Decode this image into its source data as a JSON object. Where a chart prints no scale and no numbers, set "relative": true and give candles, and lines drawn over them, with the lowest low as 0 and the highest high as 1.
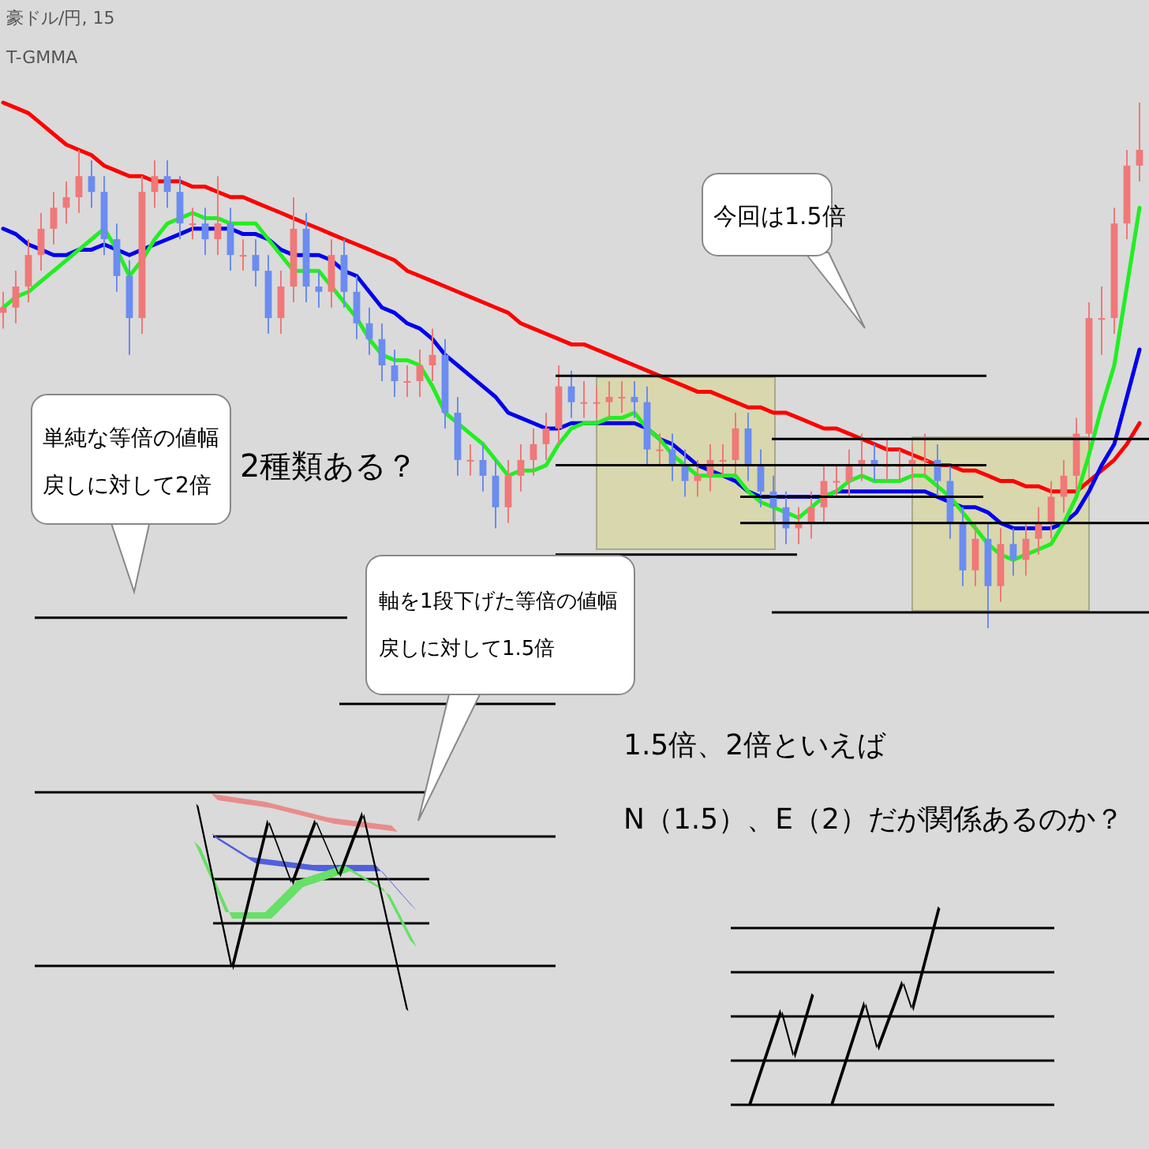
{
  "chart_data": {
    "type": "candlestick",
    "title": "豪ドル/円, 15",
    "subtitle": "T-GMMA",
    "relative": true,
    "categories": [
      null,
      null,
      null,
      null,
      null,
      null,
      null,
      null,
      null,
      null,
      null,
      null,
      null,
      null,
      null,
      null,
      null,
      null,
      null,
      null,
      null,
      null,
      null,
      null,
      null,
      null,
      null,
      null,
      null,
      null,
      null,
      null,
      null,
      null,
      null,
      null,
      null,
      null,
      null,
      null,
      null,
      null,
      null,
      null,
      null,
      null,
      null,
      null,
      null,
      null,
      null,
      null,
      null,
      null,
      null,
      null,
      null,
      null,
      null,
      null,
      null,
      null,
      null,
      null,
      null,
      null,
      null,
      null,
      null,
      null,
      null,
      null,
      null,
      null,
      null,
      null,
      null,
      null,
      null,
      null,
      null,
      null,
      null,
      null,
      null,
      null,
      null,
      null,
      null,
      null,
      null
    ],
    "ohlc": [
      [
        0.6,
        0.64,
        0.57,
        0.61
      ],
      [
        0.61,
        0.68,
        0.58,
        0.65
      ],
      [
        0.65,
        0.74,
        0.62,
        0.71
      ],
      [
        0.71,
        0.79,
        0.68,
        0.76
      ],
      [
        0.76,
        0.83,
        0.73,
        0.8
      ],
      [
        0.8,
        0.85,
        0.77,
        0.82
      ],
      [
        0.82,
        0.91,
        0.79,
        0.86
      ],
      [
        0.86,
        0.89,
        0.8,
        0.83
      ],
      [
        0.83,
        0.86,
        0.71,
        0.74
      ],
      [
        0.74,
        0.77,
        0.64,
        0.67
      ],
      [
        0.67,
        0.7,
        0.52,
        0.59
      ],
      [
        0.59,
        0.86,
        0.56,
        0.83
      ],
      [
        0.83,
        0.89,
        0.8,
        0.86
      ],
      [
        0.86,
        0.89,
        0.8,
        0.83
      ],
      [
        0.83,
        0.86,
        0.74,
        0.77
      ],
      [
        0.77,
        0.8,
        0.74,
        0.77
      ],
      [
        0.77,
        0.8,
        0.71,
        0.74
      ],
      [
        0.74,
        0.86,
        0.71,
        0.77
      ],
      [
        0.77,
        0.8,
        0.68,
        0.71
      ],
      [
        0.71,
        0.74,
        0.68,
        0.71
      ],
      [
        0.71,
        0.74,
        0.65,
        0.68
      ],
      [
        0.68,
        0.71,
        0.56,
        0.59
      ],
      [
        0.59,
        0.68,
        0.56,
        0.65
      ],
      [
        0.65,
        0.82,
        0.62,
        0.76
      ],
      [
        0.76,
        0.79,
        0.62,
        0.65
      ],
      [
        0.65,
        0.68,
        0.61,
        0.64
      ],
      [
        0.64,
        0.74,
        0.61,
        0.71
      ],
      [
        0.71,
        0.74,
        0.61,
        0.64
      ],
      [
        0.64,
        0.67,
        0.55,
        0.58
      ],
      [
        0.58,
        0.61,
        0.52,
        0.55
      ],
      [
        0.55,
        0.58,
        0.47,
        0.5
      ],
      [
        0.5,
        0.53,
        0.44,
        0.47
      ],
      [
        0.47,
        0.5,
        0.44,
        0.47
      ],
      [
        0.47,
        0.53,
        0.44,
        0.5
      ],
      [
        0.5,
        0.57,
        0.47,
        0.52
      ],
      [
        0.52,
        0.55,
        0.38,
        0.41
      ],
      [
        0.41,
        0.44,
        0.29,
        0.32
      ],
      [
        0.32,
        0.35,
        0.29,
        0.32
      ],
      [
        0.32,
        0.35,
        0.26,
        0.29
      ],
      [
        0.29,
        0.32,
        0.19,
        0.23
      ],
      [
        0.23,
        0.32,
        0.2,
        0.29
      ],
      [
        0.29,
        0.35,
        0.26,
        0.32
      ],
      [
        0.32,
        0.38,
        0.29,
        0.35
      ],
      [
        0.35,
        0.41,
        0.32,
        0.38
      ],
      [
        0.38,
        0.5,
        0.35,
        0.46
      ],
      [
        0.46,
        0.49,
        0.4,
        0.43
      ],
      [
        0.43,
        0.47,
        0.4,
        0.43
      ],
      [
        0.43,
        0.46,
        0.4,
        0.43
      ],
      [
        0.43,
        0.47,
        0.4,
        0.44
      ],
      [
        0.44,
        0.47,
        0.41,
        0.44
      ],
      [
        0.44,
        0.47,
        0.4,
        0.43
      ],
      [
        0.43,
        0.46,
        0.31,
        0.34
      ],
      [
        0.34,
        0.37,
        0.31,
        0.34
      ],
      [
        0.34,
        0.37,
        0.28,
        0.31
      ],
      [
        0.31,
        0.34,
        0.25,
        0.28
      ],
      [
        0.28,
        0.32,
        0.25,
        0.29
      ],
      [
        0.29,
        0.35,
        0.26,
        0.32
      ],
      [
        0.32,
        0.35,
        0.29,
        0.32
      ],
      [
        0.32,
        0.41,
        0.29,
        0.38
      ],
      [
        0.38,
        0.41,
        0.28,
        0.31
      ],
      [
        0.31,
        0.34,
        0.23,
        0.26
      ],
      [
        0.26,
        0.29,
        0.2,
        0.23
      ],
      [
        0.23,
        0.26,
        0.16,
        0.19
      ],
      [
        0.19,
        0.23,
        0.16,
        0.2
      ],
      [
        0.2,
        0.26,
        0.17,
        0.23
      ],
      [
        0.23,
        0.31,
        0.2,
        0.28
      ],
      [
        0.28,
        0.31,
        0.25,
        0.28
      ],
      [
        0.28,
        0.34,
        0.25,
        0.31
      ],
      [
        0.31,
        0.37,
        0.28,
        0.32
      ],
      [
        0.32,
        0.35,
        0.28,
        0.31
      ],
      [
        0.31,
        0.36,
        0.28,
        0.31
      ],
      [
        0.31,
        0.34,
        0.28,
        0.31
      ],
      [
        0.31,
        0.35,
        0.28,
        0.32
      ],
      [
        0.32,
        0.37,
        0.29,
        0.32
      ],
      [
        0.32,
        0.35,
        0.25,
        0.28
      ],
      [
        0.28,
        0.31,
        0.17,
        0.2
      ],
      [
        0.2,
        0.23,
        0.08,
        0.11
      ],
      [
        0.11,
        0.2,
        0.08,
        0.17
      ],
      [
        0.17,
        0.2,
        0.0,
        0.08
      ],
      [
        0.08,
        0.19,
        0.05,
        0.16
      ],
      [
        0.16,
        0.19,
        0.1,
        0.13
      ],
      [
        0.13,
        0.2,
        0.1,
        0.17
      ],
      [
        0.17,
        0.23,
        0.14,
        0.2
      ],
      [
        0.2,
        0.28,
        0.17,
        0.25
      ],
      [
        0.25,
        0.32,
        0.22,
        0.29
      ],
      [
        0.29,
        0.4,
        0.26,
        0.37
      ],
      [
        0.37,
        0.62,
        0.34,
        0.59
      ],
      [
        0.59,
        0.65,
        0.52,
        0.59
      ],
      [
        0.59,
        0.8,
        0.56,
        0.77
      ],
      [
        0.77,
        0.91,
        0.74,
        0.88
      ],
      [
        0.88,
        1.0,
        0.85,
        0.91
      ]
    ],
    "series": [
      {
        "type": "line",
        "color": "#ff0000",
        "values": [
          1.0,
          0.99,
          0.98,
          0.96,
          0.94,
          0.92,
          0.91,
          0.9,
          0.88,
          0.87,
          0.86,
          0.86,
          0.85,
          0.85,
          0.85,
          0.84,
          0.84,
          0.83,
          0.82,
          0.82,
          0.81,
          0.8,
          0.79,
          0.78,
          0.77,
          0.76,
          0.75,
          0.74,
          0.73,
          0.72,
          0.71,
          0.7,
          0.68,
          0.67,
          0.66,
          0.65,
          0.64,
          0.63,
          0.62,
          0.61,
          0.6,
          0.58,
          0.57,
          0.56,
          0.55,
          0.54,
          0.54,
          0.53,
          0.52,
          0.51,
          0.5,
          0.49,
          0.48,
          0.47,
          0.46,
          0.45,
          0.45,
          0.44,
          0.43,
          0.42,
          0.42,
          0.41,
          0.41,
          0.4,
          0.39,
          0.38,
          0.38,
          0.37,
          0.36,
          0.35,
          0.34,
          0.34,
          0.33,
          0.32,
          0.31,
          0.31,
          0.3,
          0.3,
          0.29,
          0.28,
          0.28,
          0.27,
          0.27,
          0.26,
          0.26,
          0.26,
          0.28,
          0.3,
          0.32,
          0.35,
          0.39
        ]
      },
      {
        "type": "line",
        "color": "#0000ee",
        "values": [
          0.76,
          0.75,
          0.73,
          0.72,
          0.71,
          0.71,
          0.72,
          0.72,
          0.73,
          0.72,
          0.71,
          0.72,
          0.73,
          0.74,
          0.75,
          0.76,
          0.76,
          0.76,
          0.76,
          0.75,
          0.75,
          0.74,
          0.72,
          0.71,
          0.71,
          0.71,
          0.7,
          0.68,
          0.67,
          0.64,
          0.61,
          0.6,
          0.58,
          0.57,
          0.55,
          0.52,
          0.5,
          0.48,
          0.46,
          0.44,
          0.41,
          0.4,
          0.39,
          0.38,
          0.38,
          0.39,
          0.39,
          0.39,
          0.39,
          0.39,
          0.39,
          0.38,
          0.36,
          0.35,
          0.33,
          0.31,
          0.3,
          0.29,
          0.28,
          0.26,
          0.25,
          0.25,
          0.25,
          0.25,
          0.25,
          0.25,
          0.26,
          0.26,
          0.26,
          0.26,
          0.26,
          0.26,
          0.26,
          0.26,
          0.25,
          0.24,
          0.23,
          0.23,
          0.22,
          0.2,
          0.19,
          0.19,
          0.19,
          0.19,
          0.2,
          0.22,
          0.26,
          0.31,
          0.35,
          0.44,
          0.53
        ]
      },
      {
        "type": "line",
        "color": "#22ee22",
        "values": [
          0.61,
          0.63,
          0.64,
          0.66,
          0.68,
          0.7,
          0.72,
          0.74,
          0.76,
          0.72,
          0.67,
          0.7,
          0.74,
          0.77,
          0.78,
          0.79,
          0.78,
          0.78,
          0.77,
          0.77,
          0.77,
          0.74,
          0.71,
          0.68,
          0.68,
          0.68,
          0.65,
          0.62,
          0.59,
          0.55,
          0.52,
          0.51,
          0.51,
          0.5,
          0.46,
          0.41,
          0.39,
          0.37,
          0.35,
          0.32,
          0.29,
          0.3,
          0.3,
          0.31,
          0.35,
          0.38,
          0.39,
          0.39,
          0.4,
          0.4,
          0.41,
          0.38,
          0.36,
          0.33,
          0.31,
          0.29,
          0.29,
          0.29,
          0.29,
          0.26,
          0.24,
          0.23,
          0.22,
          0.21,
          0.23,
          0.25,
          0.26,
          0.28,
          0.29,
          0.28,
          0.28,
          0.28,
          0.29,
          0.29,
          0.27,
          0.25,
          0.22,
          0.19,
          0.16,
          0.14,
          0.13,
          0.14,
          0.15,
          0.16,
          0.2,
          0.25,
          0.33,
          0.42,
          0.5,
          0.65,
          0.8
        ]
      }
    ],
    "ref_lines": [
      {
        "axis": "y",
        "value": 0.48
      },
      {
        "axis": "y",
        "value": 0.36
      },
      {
        "axis": "y",
        "value": 0.31
      },
      {
        "axis": "y",
        "value": 0.25
      },
      {
        "axis": "y",
        "value": 0.2
      },
      {
        "axis": "y",
        "value": 0.14
      },
      {
        "axis": "y",
        "value": 0.03
      },
      {
        "axis": "y",
        "value": 0.02
      }
    ],
    "annotations": [
      "単純な等倍の値幅戻しに対して2倍",
      "2種類ある？",
      "軸を1段下げた等倍の値幅戻しに対して1.5倍",
      "今回は1.5倍",
      "1.5倍、2倍といえば",
      "N（1.5）、E（2）だが関係あるのか？"
    ]
  }
}
